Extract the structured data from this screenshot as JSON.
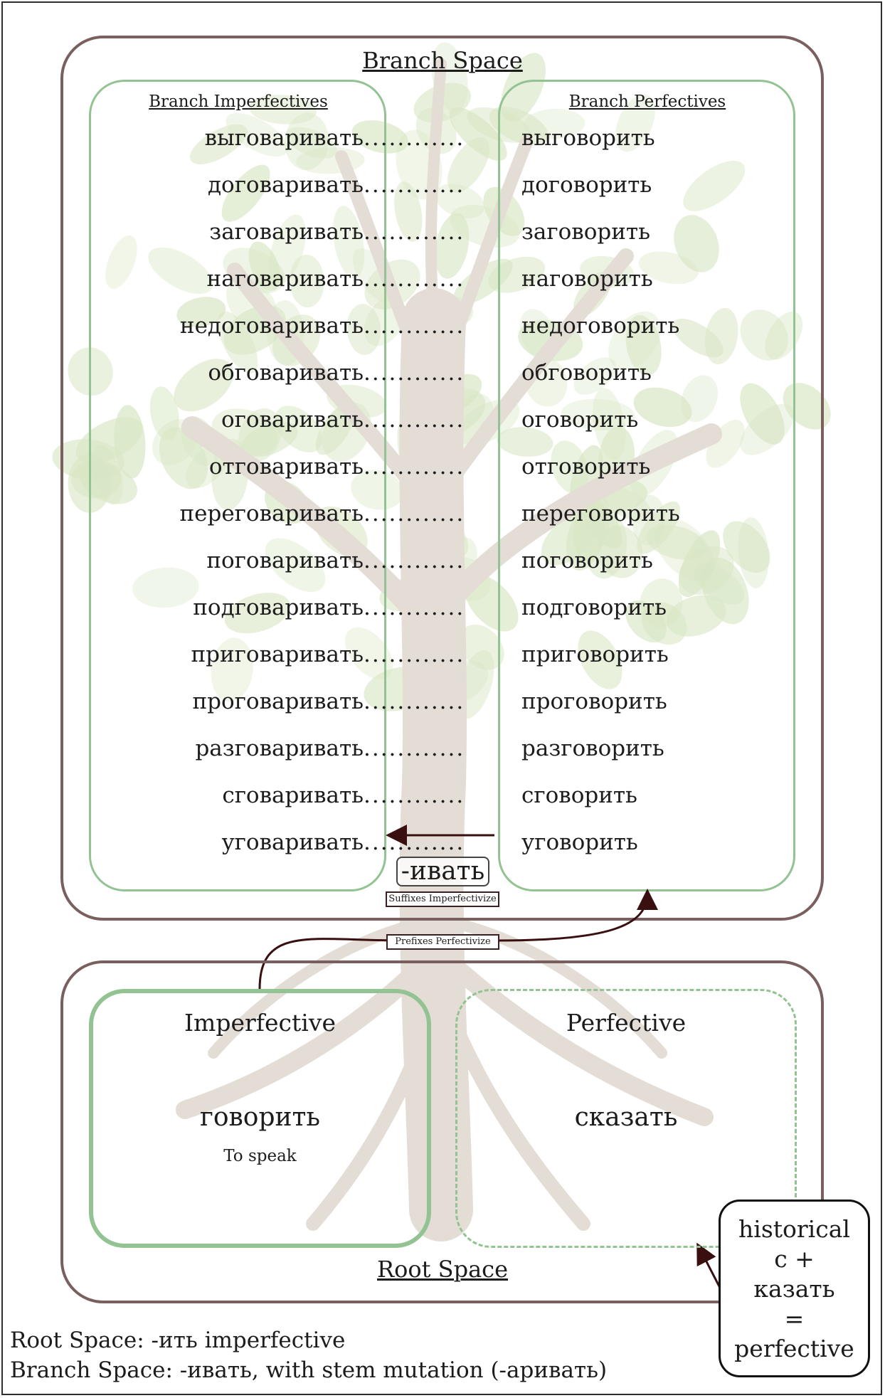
{
  "branch_space": {
    "title": "Branch Space",
    "imperfectives_title": "Branch Imperfectives",
    "perfectives_title": "Branch Perfectives",
    "dots": "............",
    "pairs": [
      {
        "imperfective": "выговаривать",
        "perfective": "выговорить"
      },
      {
        "imperfective": "договаривать",
        "perfective": "договорить"
      },
      {
        "imperfective": "заговаривать",
        "perfective": "заговорить"
      },
      {
        "imperfective": "наговаривать",
        "perfective": "наговорить"
      },
      {
        "imperfective": "недоговаривать",
        "perfective": "недоговорить"
      },
      {
        "imperfective": "обговаривать",
        "perfective": "обговорить"
      },
      {
        "imperfective": "оговаривать",
        "perfective": "оговорить"
      },
      {
        "imperfective": "отговаривать",
        "perfective": "отговорить"
      },
      {
        "imperfective": "переговаривать",
        "perfective": "переговорить"
      },
      {
        "imperfective": "поговаривать",
        "perfective": "поговорить"
      },
      {
        "imperfective": "подговаривать",
        "perfective": "подговорить"
      },
      {
        "imperfective": "приговаривать",
        "perfective": "приговорить"
      },
      {
        "imperfective": "проговаривать",
        "perfective": "проговорить"
      },
      {
        "imperfective": "разговаривать",
        "perfective": "разговорить"
      },
      {
        "imperfective": "сговаривать",
        "perfective": "сговорить"
      },
      {
        "imperfective": "уговаривать",
        "perfective": "уговорить"
      }
    ],
    "suffix": "-ивать",
    "suffix_label": "Suffixes Imperfectivize"
  },
  "prefix_label": "Prefixes Perfectivize",
  "root_space": {
    "title": "Root Space",
    "imperfective": {
      "heading": "Imperfective",
      "word": "говорить",
      "gloss": "To speak"
    },
    "perfective": {
      "heading": "Perfective",
      "word": "сказать"
    }
  },
  "note": {
    "line1": "historical",
    "line2": "с +",
    "line3": "казать",
    "line4": "=",
    "line5": "perfective"
  },
  "legend": {
    "line1": "Root Space: -ить imperfective",
    "line2": "Branch Space: -ивать, with stem mutation (-аривать)"
  },
  "colors": {
    "space_border": "#7a5f5f",
    "column_border": "#93c293",
    "arrow": "#3a0f0f",
    "leaf": "#d8e6c4",
    "trunk": "#e4ddd6"
  }
}
